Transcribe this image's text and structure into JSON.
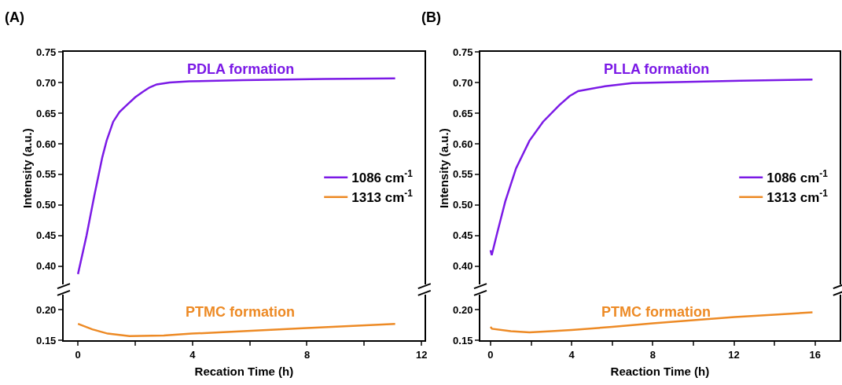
{
  "chart_data": [
    {
      "type": "line",
      "title": "(A)",
      "ylabel": "Intensity (a.u.)",
      "xlim": [
        -0.5,
        12.1
      ],
      "ylim": [
        0.37,
        0.75
      ],
      "yticks": [
        {
          "value": 0.4,
          "label": "0.40"
        },
        {
          "value": 0.45,
          "label": "0.45"
        },
        {
          "value": 0.5,
          "label": "0.50"
        },
        {
          "value": 0.55,
          "label": "0.55"
        },
        {
          "value": 0.6,
          "label": "0.60"
        },
        {
          "value": 0.65,
          "label": "0.65"
        },
        {
          "value": 0.7,
          "label": "0.70"
        },
        {
          "value": 0.75,
          "label": "0.75"
        }
      ],
      "tick_labels": "y",
      "legend": "right",
      "annotations": [
        "PDLA formation"
      ],
      "series": [
        {
          "name": "1086 cm$^{-1}$",
          "color": "#7b1ae6",
          "x": [
            0,
            0.3,
            0.57,
            0.85,
            1.0,
            1.23,
            1.45,
            1.7,
            2.0,
            2.27,
            2.5,
            2.75,
            3.2,
            3.88,
            5.77,
            8.6,
            11.08
          ],
          "values": [
            0.387,
            0.45,
            0.515,
            0.578,
            0.605,
            0.636,
            0.652,
            0.663,
            0.676,
            0.685,
            0.692,
            0.697,
            0.7,
            0.702,
            0.704,
            0.706,
            0.707
          ]
        }
      ]
    },
    {
      "type": "line",
      "xlabel": "Recation Time (h)",
      "xlim": [
        -0.5,
        12.1
      ],
      "ylim": [
        0.15,
        0.225
      ],
      "xticks": [
        0,
        {
          "value": 2,
          "label": null
        },
        4,
        {
          "value": 6,
          "label": null
        },
        8,
        {
          "value": 10,
          "label": null
        },
        12
      ],
      "yticks": [
        {
          "value": 0.15,
          "label": "0.15"
        },
        {
          "value": 0.2,
          "label": "0.20"
        }
      ],
      "legend": "right",
      "annotations": [
        "PTMC formation"
      ],
      "series": [
        {
          "name": "1313 cm$^{-1}$",
          "color": "#ed8a25",
          "x": [
            0,
            0.5,
            1.04,
            1.8,
            3.0,
            3.98,
            5.77,
            8.0,
            11.08
          ],
          "values": [
            0.177,
            0.168,
            0.161,
            0.157,
            0.158,
            0.161,
            0.165,
            0.17,
            0.177
          ]
        }
      ]
    },
    {
      "type": "line",
      "title": "(B)",
      "ylabel": "Intensity (a.u.)",
      "xlim": [
        -0.5,
        17.2
      ],
      "ylim": [
        0.37,
        0.75
      ],
      "yticks": [
        {
          "value": 0.4,
          "label": "0.40"
        },
        {
          "value": 0.45,
          "label": "0.45"
        },
        {
          "value": 0.5,
          "label": "0.50"
        },
        {
          "value": 0.55,
          "label": "0.55"
        },
        {
          "value": 0.6,
          "label": "0.60"
        },
        {
          "value": 0.65,
          "label": "0.65"
        },
        {
          "value": 0.7,
          "label": "0.70"
        },
        {
          "value": 0.75,
          "label": "0.75"
        }
      ],
      "tick_labels": "y",
      "legend": "right",
      "annotations": [
        "PLLA formation"
      ],
      "series": [
        {
          "name": "1086 cm$^{-1}$",
          "color": "#7b1ae6",
          "x": [
            0,
            0.06,
            0.32,
            0.73,
            1.26,
            1.92,
            2.59,
            3.39,
            3.9,
            4.32,
            5.65,
            6.98,
            9.64,
            12.31,
            15.87
          ],
          "values": [
            0.426,
            0.418,
            0.453,
            0.506,
            0.56,
            0.605,
            0.636,
            0.663,
            0.678,
            0.686,
            0.694,
            0.699,
            0.701,
            0.703,
            0.705
          ]
        }
      ]
    },
    {
      "type": "line",
      "xlabel": "Reaction Time (h)",
      "xlim": [
        -0.5,
        17.2
      ],
      "ylim": [
        0.15,
        0.225
      ],
      "xticks": [
        0,
        {
          "value": 2,
          "label": null
        },
        4,
        {
          "value": 6,
          "label": null
        },
        8,
        {
          "value": 10,
          "label": null
        },
        12,
        {
          "value": 14,
          "label": null
        },
        16
      ],
      "yticks": [
        {
          "value": 0.15,
          "label": "0.15"
        },
        {
          "value": 0.2,
          "label": "0.20"
        }
      ],
      "legend": "right",
      "annotations": [
        "PTMC formation"
      ],
      "series": [
        {
          "name": "1313 cm$^{-1}$",
          "color": "#ed8a25",
          "x": [
            0,
            0.07,
            1.0,
            1.92,
            3.0,
            3.99,
            6.0,
            8.0,
            10.0,
            12.03,
            14.0,
            15.87
          ],
          "values": [
            0.172,
            0.169,
            0.165,
            0.163,
            0.165,
            0.167,
            0.172,
            0.178,
            0.183,
            0.188,
            0.192,
            0.196
          ]
        }
      ]
    }
  ]
}
